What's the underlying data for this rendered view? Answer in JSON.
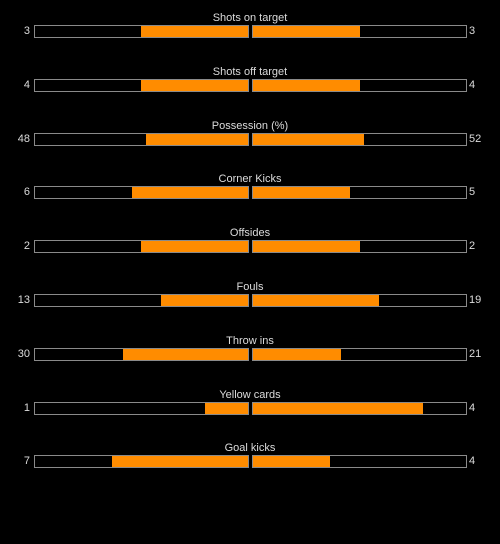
{
  "colors": {
    "background": "#000000",
    "fill": "#ff8c00",
    "bar_border": "#8a8a8a",
    "text": "#dcdcdc"
  },
  "stats": [
    {
      "label": "Shots on target",
      "home": 3,
      "away": 3
    },
    {
      "label": "Shots off target",
      "home": 4,
      "away": 4
    },
    {
      "label": "Possession (%)",
      "home": 48,
      "away": 52
    },
    {
      "label": "Corner Kicks",
      "home": 6,
      "away": 5
    },
    {
      "label": "Offsides",
      "home": 2,
      "away": 2
    },
    {
      "label": "Fouls",
      "home": 13,
      "away": 19
    },
    {
      "label": "Throw ins",
      "home": 30,
      "away": 21
    },
    {
      "label": "Yellow cards",
      "home": 1,
      "away": 4
    },
    {
      "label": "Goal kicks",
      "home": 7,
      "away": 4
    }
  ]
}
